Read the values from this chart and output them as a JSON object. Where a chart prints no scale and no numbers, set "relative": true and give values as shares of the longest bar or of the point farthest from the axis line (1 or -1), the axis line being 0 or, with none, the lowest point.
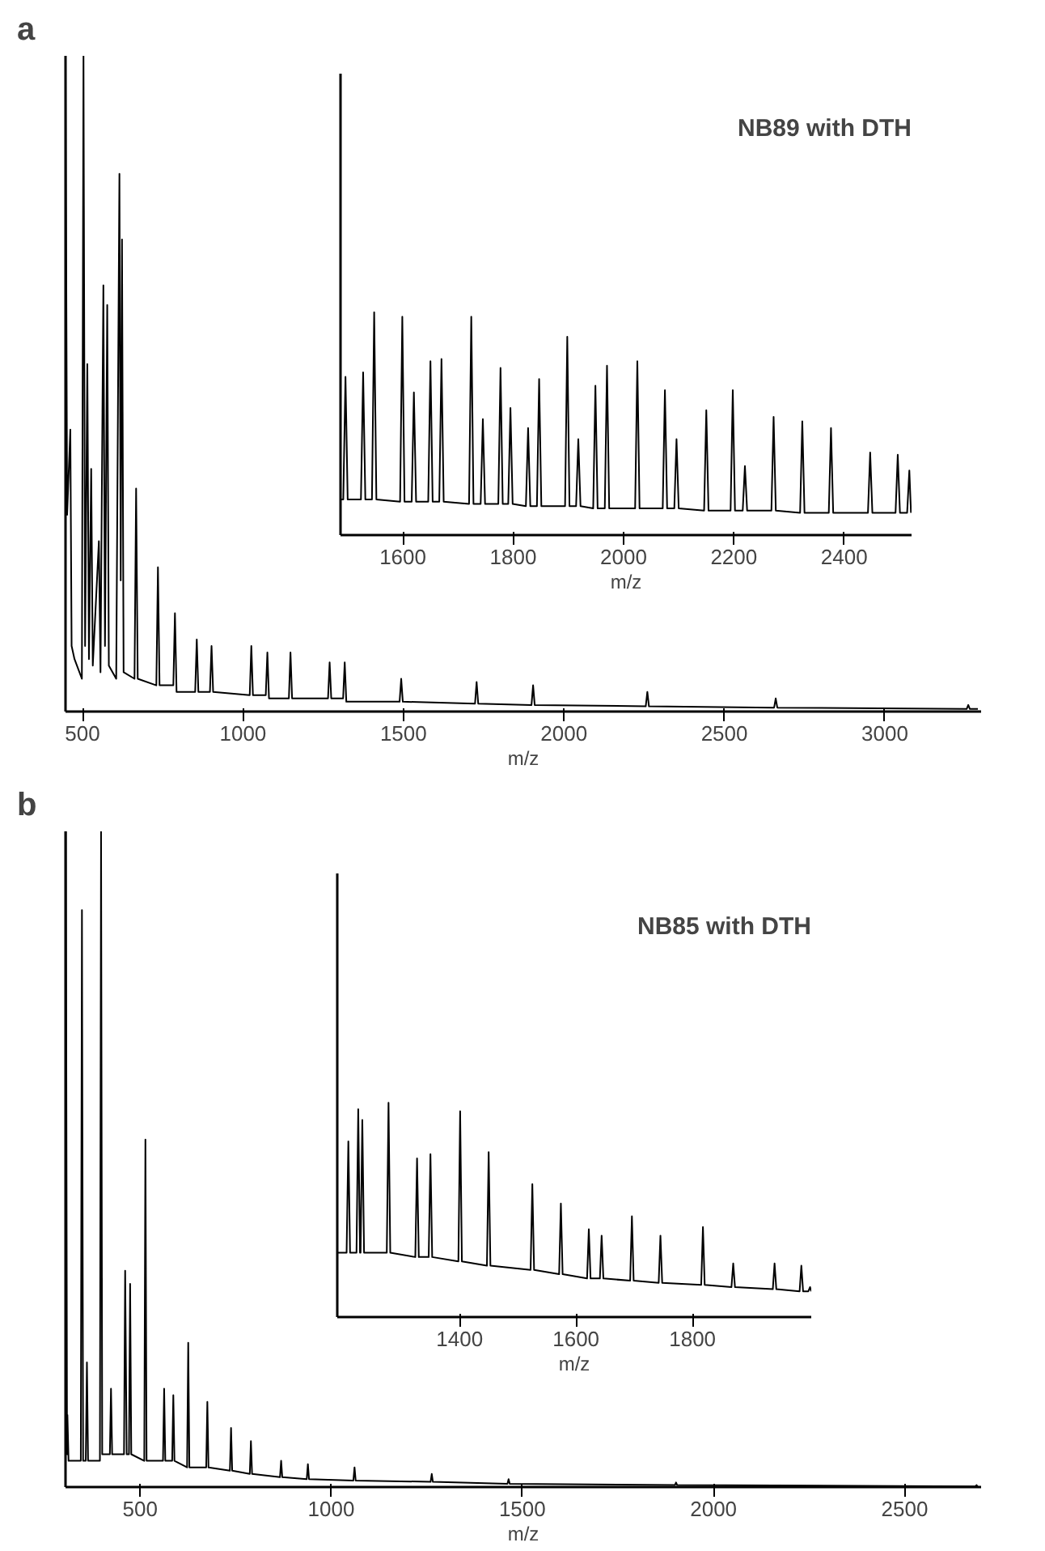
{
  "chart_data": [
    {
      "type": "line",
      "title": "a",
      "xlabel": "m/z",
      "relative": true,
      "tick_labels": "x",
      "color": "#000000",
      "xlim": [
        447,
        3300
      ],
      "xticks": [
        500,
        1000,
        1500,
        2000,
        2500,
        3000
      ],
      "x": [
        447,
        452,
        462,
        466,
        475,
        498,
        503,
        508,
        515,
        520,
        527,
        532,
        551,
        556,
        565,
        570,
        577,
        582,
        605,
        615,
        619,
        623,
        628,
        662,
        667,
        672,
        730,
        735,
        740,
        783,
        788,
        793,
        851,
        856,
        861,
        897,
        902,
        907,
        1021,
        1026,
        1031,
        1071,
        1076,
        1081,
        1143,
        1148,
        1153,
        1265,
        1270,
        1275,
        1312,
        1317,
        1322,
        1488,
        1493,
        1498,
        1723,
        1728,
        1733,
        1899,
        1904,
        1909,
        2255,
        2260,
        2265,
        2655,
        2660,
        2665,
        3255,
        3260,
        3265,
        3290
      ],
      "values": [
        1.0,
        0.3,
        0.43,
        0.1,
        0.08,
        0.05,
        1.0,
        0.1,
        0.53,
        0.08,
        0.37,
        0.07,
        0.26,
        0.06,
        0.65,
        0.1,
        0.62,
        0.07,
        0.05,
        0.82,
        0.2,
        0.72,
        0.06,
        0.05,
        0.34,
        0.05,
        0.04,
        0.22,
        0.04,
        0.04,
        0.15,
        0.03,
        0.03,
        0.11,
        0.03,
        0.03,
        0.1,
        0.03,
        0.025,
        0.1,
        0.025,
        0.025,
        0.09,
        0.02,
        0.02,
        0.09,
        0.02,
        0.02,
        0.075,
        0.02,
        0.02,
        0.075,
        0.015,
        0.015,
        0.05,
        0.015,
        0.012,
        0.045,
        0.012,
        0.01,
        0.04,
        0.01,
        0.008,
        0.03,
        0.008,
        0.006,
        0.02,
        0.006,
        0.004,
        0.01,
        0.004,
        0.004
      ]
    },
    {
      "type": "line",
      "title": "NB89 with DTH",
      "xlabel": "m/z",
      "relative": true,
      "tick_labels": "x",
      "color": "#000000",
      "xlim": [
        1487,
        2522
      ],
      "xticks": [
        1600,
        1800,
        2000,
        2200,
        2400
      ],
      "x": [
        1487,
        1492,
        1496,
        1500,
        1524,
        1528,
        1532,
        1544,
        1548,
        1552,
        1595,
        1599,
        1603,
        1616,
        1620,
        1624,
        1646,
        1650,
        1654,
        1666,
        1670,
        1674,
        1720,
        1724,
        1728,
        1741,
        1745,
        1749,
        1773,
        1777,
        1781,
        1791,
        1795,
        1799,
        1823,
        1827,
        1831,
        1843,
        1847,
        1851,
        1894,
        1898,
        1902,
        1914,
        1918,
        1922,
        1945,
        1949,
        1953,
        1966,
        1970,
        1974,
        2021,
        2025,
        2029,
        2071,
        2075,
        2079,
        2092,
        2096,
        2100,
        2146,
        2150,
        2154,
        2194,
        2198,
        2202,
        2216,
        2220,
        2224,
        2268,
        2272,
        2276,
        2320,
        2324,
        2328,
        2372,
        2376,
        2380,
        2443,
        2447,
        2451,
        2493,
        2497,
        2501,
        2514,
        2518,
        2521
      ],
      "values": [
        0.16,
        0.16,
        0.71,
        0.16,
        0.16,
        0.73,
        0.16,
        0.16,
        1.0,
        0.16,
        0.15,
        0.98,
        0.15,
        0.15,
        0.64,
        0.15,
        0.15,
        0.78,
        0.15,
        0.15,
        0.79,
        0.15,
        0.14,
        0.98,
        0.14,
        0.14,
        0.52,
        0.14,
        0.14,
        0.75,
        0.14,
        0.14,
        0.57,
        0.14,
        0.13,
        0.48,
        0.13,
        0.13,
        0.7,
        0.13,
        0.13,
        0.89,
        0.13,
        0.13,
        0.43,
        0.13,
        0.12,
        0.67,
        0.12,
        0.12,
        0.76,
        0.12,
        0.12,
        0.78,
        0.12,
        0.12,
        0.65,
        0.12,
        0.12,
        0.43,
        0.12,
        0.11,
        0.56,
        0.11,
        0.11,
        0.65,
        0.11,
        0.11,
        0.31,
        0.11,
        0.11,
        0.53,
        0.11,
        0.1,
        0.51,
        0.1,
        0.1,
        0.48,
        0.1,
        0.1,
        0.37,
        0.1,
        0.1,
        0.36,
        0.1,
        0.1,
        0.29,
        0.1
      ]
    },
    {
      "type": "line",
      "title": "b",
      "xlabel": "m/z",
      "relative": true,
      "tick_labels": "x",
      "color": "#000000",
      "xlim": [
        305,
        2700
      ],
      "xticks": [
        500,
        1000,
        1500,
        2000,
        2500
      ],
      "x": [
        306,
        309,
        310,
        313,
        345,
        348,
        351,
        358,
        361,
        364,
        395,
        398,
        401,
        421,
        424,
        427,
        458,
        461,
        465,
        471,
        474,
        477,
        511,
        514,
        517,
        560,
        563,
        566,
        584,
        587,
        590,
        623,
        626,
        629,
        673,
        676,
        679,
        735,
        738,
        741,
        787,
        790,
        793,
        866,
        869,
        872,
        936,
        939,
        942,
        1058,
        1061,
        1064,
        1260,
        1263,
        1266,
        1461,
        1464,
        1467,
        1899,
        1902,
        1905,
        2685,
        2688,
        2691
      ],
      "values": [
        1.0,
        0.05,
        0.11,
        0.04,
        0.04,
        0.88,
        0.04,
        0.04,
        0.19,
        0.04,
        0.04,
        1.0,
        0.05,
        0.05,
        0.15,
        0.05,
        0.05,
        0.33,
        0.05,
        0.05,
        0.31,
        0.05,
        0.04,
        0.53,
        0.04,
        0.04,
        0.15,
        0.04,
        0.04,
        0.14,
        0.04,
        0.03,
        0.22,
        0.03,
        0.03,
        0.13,
        0.03,
        0.025,
        0.09,
        0.025,
        0.02,
        0.07,
        0.02,
        0.015,
        0.04,
        0.015,
        0.012,
        0.035,
        0.012,
        0.01,
        0.03,
        0.01,
        0.008,
        0.02,
        0.008,
        0.005,
        0.012,
        0.005,
        0.003,
        0.007,
        0.003,
        0.001,
        0.003,
        0.001
      ]
    },
    {
      "type": "line",
      "title": "NB85 with DTH",
      "xlabel": "m/z",
      "relative": true,
      "tick_labels": "x",
      "color": "#000000",
      "xlim": [
        1190,
        2004
      ],
      "xticks": [
        1400,
        1600,
        1800
      ],
      "x": [
        1191,
        1206,
        1209,
        1212,
        1223,
        1226,
        1229,
        1230,
        1233,
        1236,
        1275,
        1278,
        1281,
        1324,
        1327,
        1330,
        1347,
        1350,
        1353,
        1398,
        1401,
        1404,
        1447,
        1450,
        1453,
        1522,
        1525,
        1528,
        1571,
        1574,
        1577,
        1619,
        1622,
        1625,
        1641,
        1644,
        1647,
        1693,
        1696,
        1699,
        1742,
        1745,
        1748,
        1815,
        1818,
        1821,
        1867,
        1870,
        1873,
        1938,
        1941,
        1944,
        1984,
        1987,
        1990,
        1999,
        2002,
        2004
      ],
      "values": [
        0.3,
        0.3,
        0.82,
        0.3,
        0.3,
        0.97,
        0.3,
        0.3,
        0.92,
        0.3,
        0.3,
        1.0,
        0.3,
        0.28,
        0.74,
        0.28,
        0.28,
        0.76,
        0.28,
        0.26,
        0.96,
        0.26,
        0.24,
        0.77,
        0.24,
        0.22,
        0.62,
        0.22,
        0.2,
        0.53,
        0.2,
        0.18,
        0.41,
        0.18,
        0.18,
        0.38,
        0.18,
        0.17,
        0.47,
        0.17,
        0.16,
        0.38,
        0.16,
        0.15,
        0.42,
        0.15,
        0.14,
        0.25,
        0.14,
        0.13,
        0.25,
        0.13,
        0.12,
        0.24,
        0.12,
        0.12,
        0.14,
        0.12
      ]
    }
  ]
}
